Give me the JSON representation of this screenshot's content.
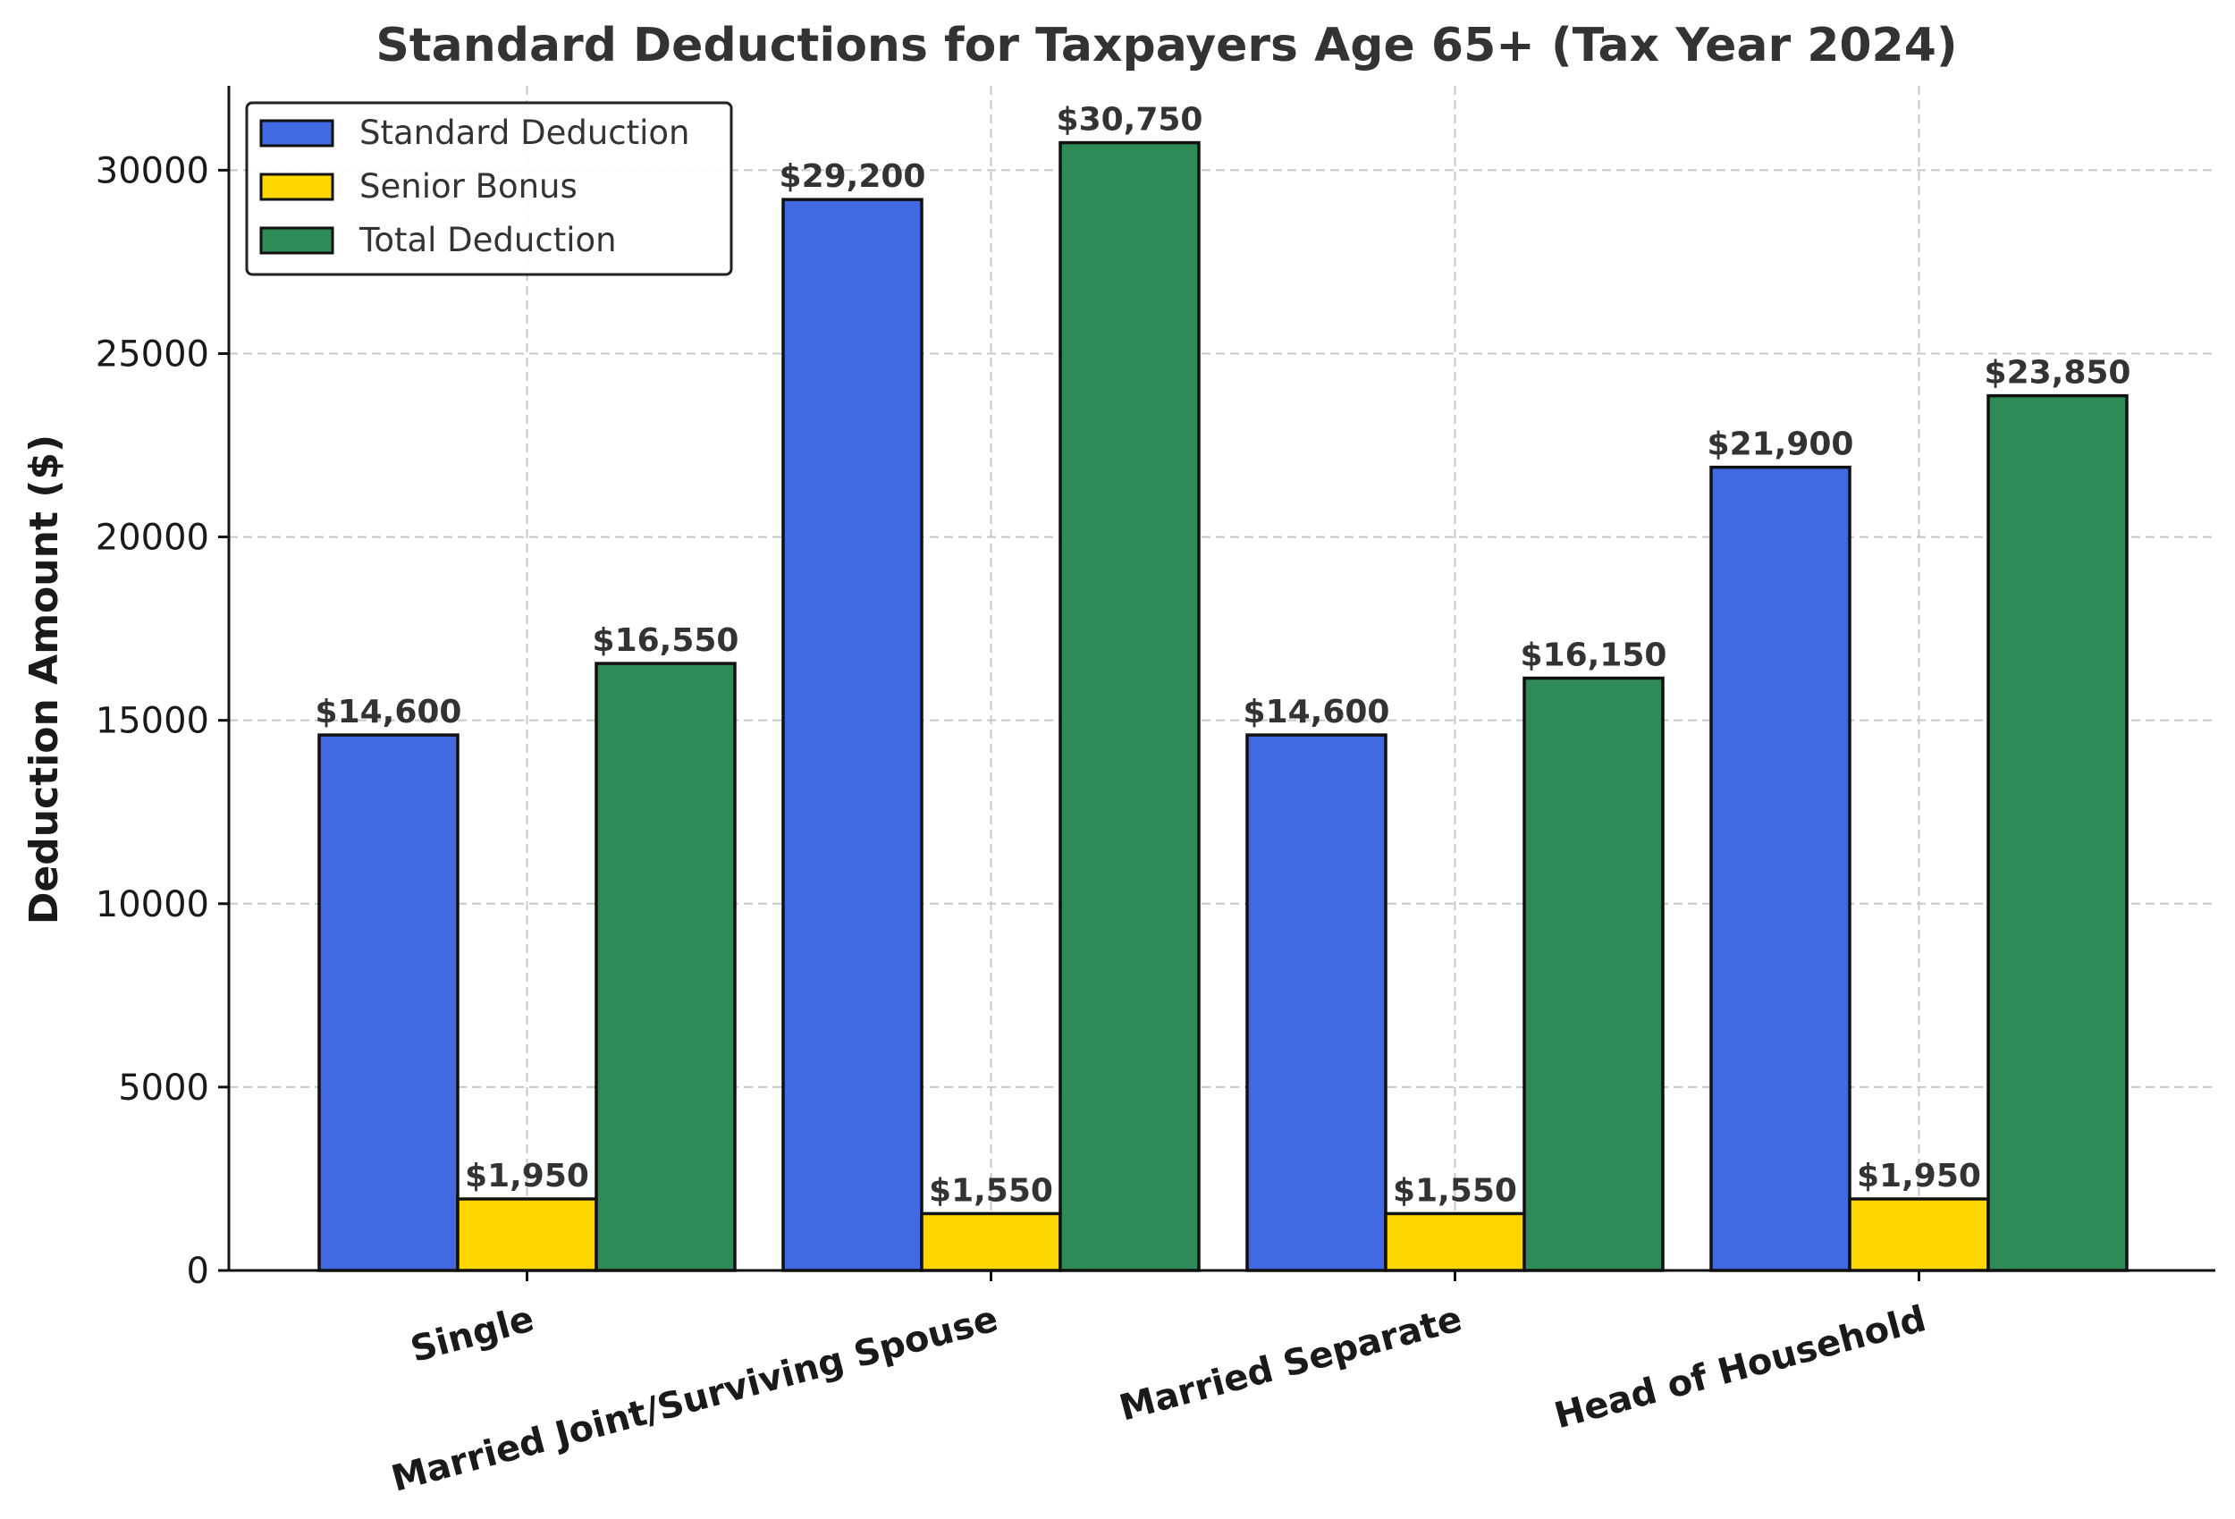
{
  "chart_data": {
    "type": "bar",
    "title": "Standard Deductions for Taxpayers Age 65+ (Tax Year 2024)",
    "xlabel": "",
    "ylabel": "Deduction Amount ($)",
    "ylim": [
      0,
      32300
    ],
    "yticks": [
      0,
      5000,
      10000,
      15000,
      20000,
      25000,
      30000
    ],
    "grid": true,
    "legend_position": "top-left",
    "categories": [
      "Single",
      "Married Joint/Surviving Spouse",
      "Married Separate",
      "Head of Household"
    ],
    "series": [
      {
        "name": "Standard Deduction",
        "color": "#4169E1",
        "values": [
          14600,
          29200,
          14600,
          21900
        ],
        "labels": [
          "$14,600",
          "$29,200",
          "$14,600",
          "$21,900"
        ]
      },
      {
        "name": "Senior Bonus",
        "color": "#FFD700",
        "values": [
          1950,
          1550,
          1550,
          1950
        ],
        "labels": [
          "$1,950",
          "$1,550",
          "$1,550",
          "$1,950"
        ]
      },
      {
        "name": "Total Deduction",
        "color": "#2E8B57",
        "values": [
          16550,
          30750,
          16150,
          23850
        ],
        "labels": [
          "$16,550",
          "$30,750",
          "$16,150",
          "$23,850"
        ]
      }
    ]
  }
}
